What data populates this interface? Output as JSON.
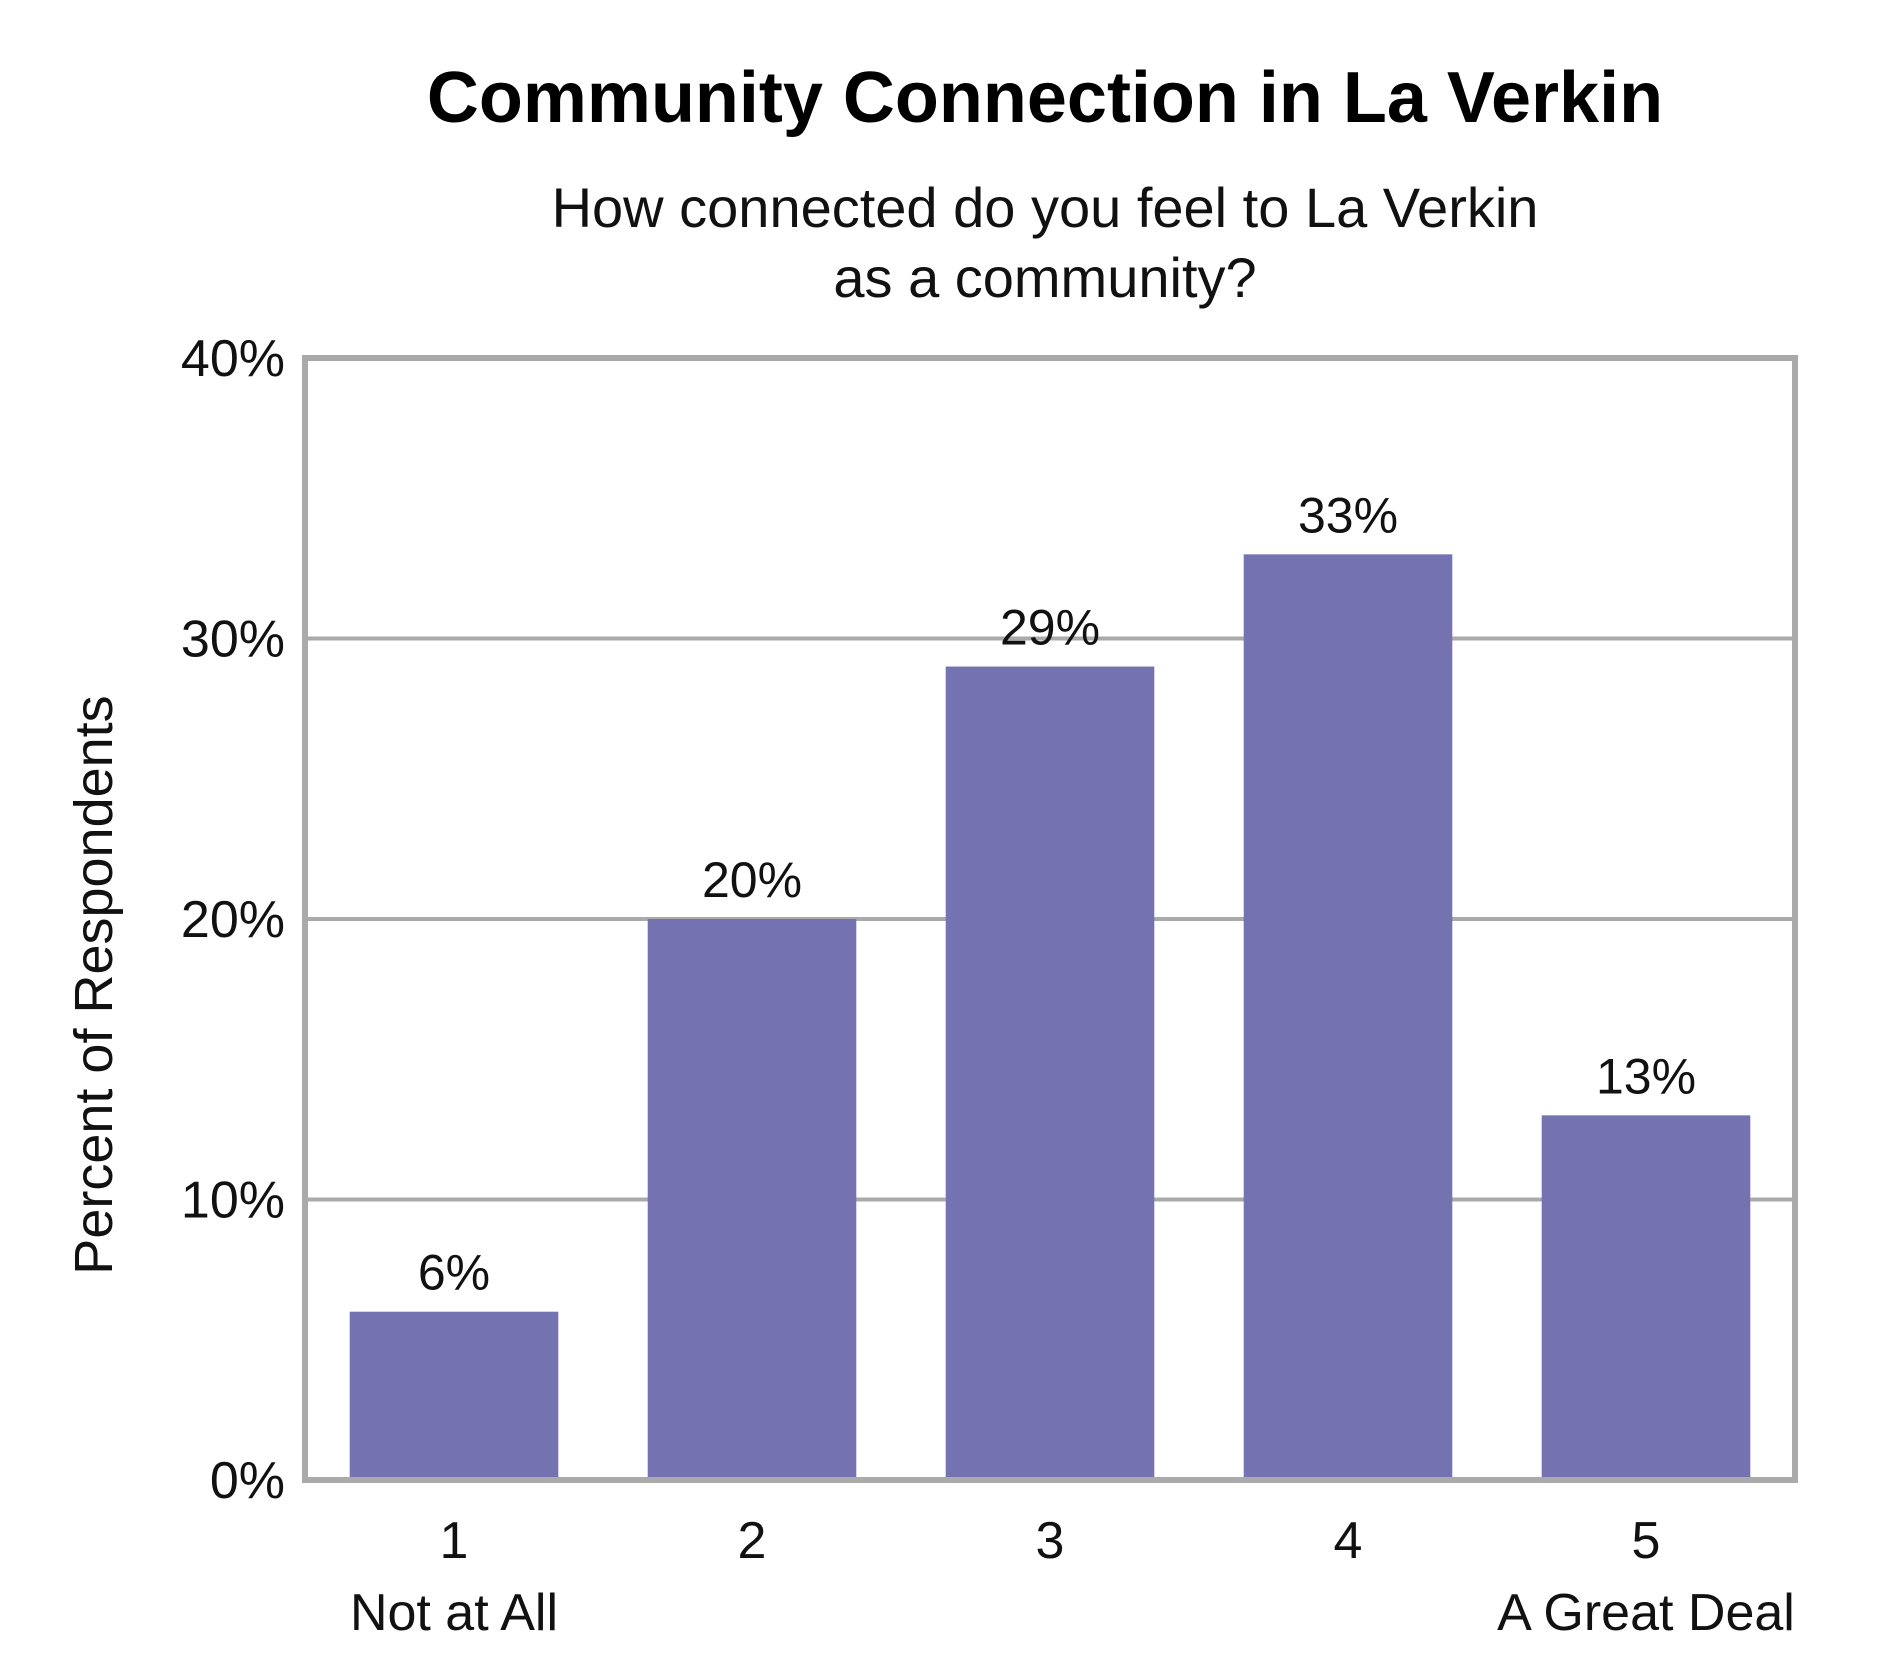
{
  "chart_data": {
    "type": "bar",
    "title": "Community Connection in La Verkin",
    "subtitle_lines": [
      "How connected do you feel to La Verkin",
      "as a community?"
    ],
    "ylabel": "Percent of Respondents",
    "xlabel": "",
    "categories": [
      "1",
      "2",
      "3",
      "4",
      "5"
    ],
    "category_sublabels": [
      "Not at All",
      "",
      "",
      "",
      "A Great Deal"
    ],
    "values": [
      6,
      20,
      29,
      33,
      13
    ],
    "data_labels": [
      "6%",
      "20%",
      "29%",
      "33%",
      "13%"
    ],
    "ylim": [
      0,
      40
    ],
    "yticks": [
      0,
      10,
      20,
      30,
      40
    ],
    "ytick_labels": [
      "0%",
      "10%",
      "20%",
      "30%",
      "40%"
    ],
    "grid": true,
    "bar_color": "#7572b2",
    "grid_color": "#aaaaaa"
  }
}
